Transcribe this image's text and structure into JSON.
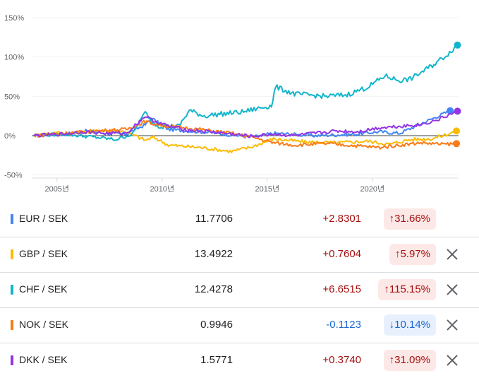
{
  "chart_data": {
    "type": "line",
    "x_ticks": [
      "2005년",
      "2010년",
      "2015년",
      "2020년"
    ],
    "y_ticks": [
      "150%",
      "100%",
      "50%",
      "0%",
      "-50%"
    ],
    "ylim": [
      -50,
      150
    ],
    "xlim": [
      2003.5,
      2023.8
    ],
    "series": [
      {
        "name": "EUR / SEK",
        "color": "#4285f4",
        "x": [
          2003.6,
          2005,
          2006,
          2007,
          2008,
          2008.9,
          2009.2,
          2010,
          2012,
          2014,
          2015,
          2017,
          2019,
          2020,
          2021,
          2022,
          2023.4
        ],
        "y": [
          0,
          2,
          6,
          3,
          2,
          14,
          22,
          8,
          4,
          -2,
          3,
          0,
          2,
          5,
          3,
          15,
          31.66
        ]
      },
      {
        "name": "GBP / SEK",
        "color": "#fbbc04",
        "x": [
          2003.6,
          2004.5,
          2005.5,
          2007,
          2008,
          2008.9,
          2009.3,
          2010,
          2011.5,
          2013,
          2014,
          2015,
          2016.5,
          2018,
          2019.5,
          2020.5,
          2021.5,
          2022.5,
          2023.3,
          2023.7
        ],
        "y": [
          0,
          4,
          3,
          7,
          5,
          -6,
          -2,
          -12,
          -15,
          -20,
          -14,
          -4,
          -8,
          -9,
          -7,
          -11,
          -5,
          -4,
          2,
          5.97
        ]
      },
      {
        "name": "CHF / SEK",
        "color": "#12b5cb",
        "x": [
          2003.6,
          2005,
          2006.5,
          2007.5,
          2008.3,
          2008.9,
          2009.2,
          2009.6,
          2010.5,
          2011,
          2011.7,
          2012.3,
          2013.5,
          2014.5,
          2014.9,
          2015.1,
          2016,
          2017.5,
          2018.5,
          2019.5,
          2020.3,
          2021,
          2021.5,
          2022,
          2022.7,
          2023.3,
          2023.75
        ],
        "y": [
          0,
          2,
          -2,
          -5,
          2,
          30,
          18,
          12,
          12,
          32,
          25,
          27,
          30,
          36,
          38,
          62,
          53,
          50,
          52,
          62,
          76,
          70,
          72,
          80,
          92,
          104,
          115.15
        ]
      },
      {
        "name": "NOK / SEK",
        "color": "#fa7b17",
        "x": [
          2003.6,
          2005,
          2006.5,
          2008,
          2008.9,
          2009.3,
          2010,
          2011.5,
          2013,
          2014,
          2015,
          2016,
          2017.5,
          2019,
          2020,
          2021,
          2022,
          2023,
          2023.7
        ],
        "y": [
          0,
          3,
          6,
          8,
          18,
          15,
          12,
          8,
          3,
          -2,
          -9,
          -12,
          -10,
          -13,
          -15,
          -12,
          -9,
          -11,
          -10.14
        ]
      },
      {
        "name": "DKK / SEK",
        "color": "#9334e6",
        "x": [
          2003.6,
          2005,
          2006,
          2007,
          2008,
          2008.9,
          2009.2,
          2010,
          2011,
          2012,
          2013,
          2014,
          2015,
          2016,
          2017,
          2018,
          2019,
          2020,
          2021,
          2022,
          2022.8,
          2023.4,
          2023.75
        ],
        "y": [
          0,
          2,
          5,
          3,
          3,
          25,
          20,
          12,
          7,
          5,
          2,
          -1,
          2,
          0,
          3,
          6,
          5,
          10,
          12,
          14,
          20,
          27,
          31.09
        ]
      }
    ]
  },
  "rows": [
    {
      "pair": "EUR / SEK",
      "color": "#4285f4",
      "price": "11.7706",
      "change": "+2.8301",
      "dir": "up",
      "pct": "31.66%",
      "arrow": "↑",
      "removable": false
    },
    {
      "pair": "GBP / SEK",
      "color": "#fbbc04",
      "price": "13.4922",
      "change": "+0.7604",
      "dir": "up",
      "pct": "5.97%",
      "arrow": "↑",
      "removable": true
    },
    {
      "pair": "CHF / SEK",
      "color": "#12b5cb",
      "price": "12.4278",
      "change": "+6.6515",
      "dir": "up",
      "pct": "115.15%",
      "arrow": "↑",
      "removable": true
    },
    {
      "pair": "NOK / SEK",
      "color": "#fa7b17",
      "price": "0.9946",
      "change": "-0.1123",
      "dir": "down",
      "pct": "10.14%",
      "arrow": "↓",
      "removable": true
    },
    {
      "pair": "DKK / SEK",
      "color": "#9334e6",
      "price": "1.5771",
      "change": "+0.3740",
      "dir": "up",
      "pct": "31.09%",
      "arrow": "↑",
      "removable": true
    }
  ]
}
